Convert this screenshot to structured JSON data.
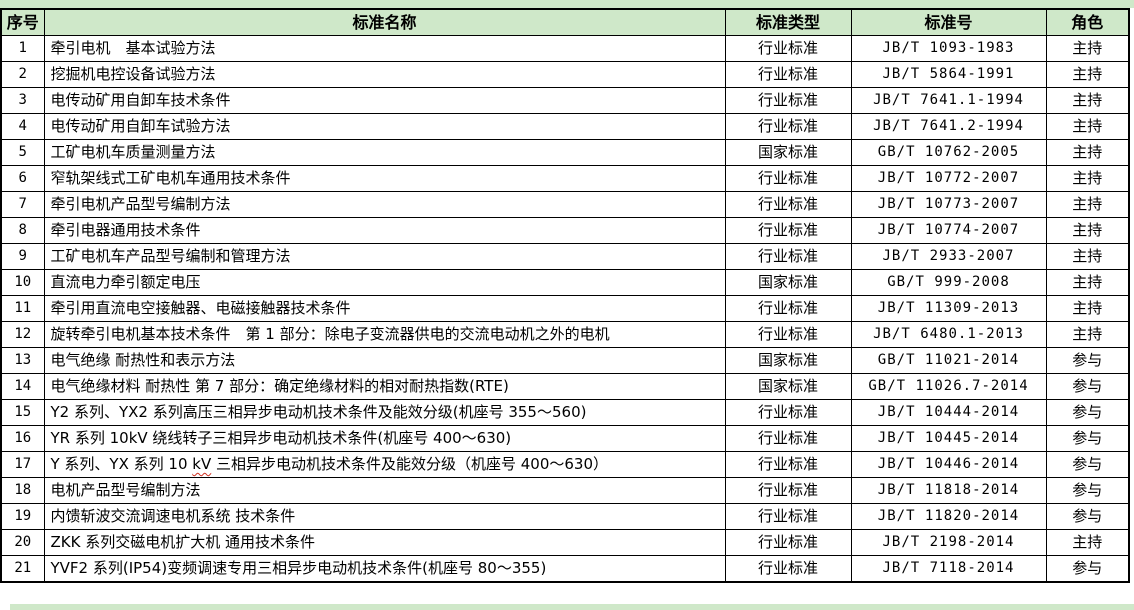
{
  "colors": {
    "band_green": "#cfe8c9",
    "border_black": "#000000",
    "spellcheck_red": "#d03020"
  },
  "table": {
    "headers": [
      "序号",
      "标准名称",
      "标准类型",
      "标准号",
      "角色"
    ],
    "rows": [
      {
        "no": "1",
        "name": "牵引电机　基本试验方法",
        "type": "行业标准",
        "code": "JB/T 1093-1983",
        "role": "主持"
      },
      {
        "no": "2",
        "name": "挖掘机电控设备试验方法",
        "type": "行业标准",
        "code": "JB/T 5864-1991",
        "role": "主持"
      },
      {
        "no": "3",
        "name": "电传动矿用自卸车技术条件",
        "type": "行业标准",
        "code": "JB/T 7641.1-1994",
        "role": "主持"
      },
      {
        "no": "4",
        "name": "电传动矿用自卸车试验方法",
        "type": "行业标准",
        "code": "JB/T 7641.2-1994",
        "role": "主持"
      },
      {
        "no": "5",
        "name": "工矿电机车质量测量方法",
        "type": "国家标准",
        "code": "GB/T 10762-2005",
        "role": "主持"
      },
      {
        "no": "6",
        "name": "窄轨架线式工矿电机车通用技术条件",
        "type": "行业标准",
        "code": "JB/T 10772-2007",
        "role": "主持"
      },
      {
        "no": "7",
        "name": "牵引电机产品型号编制方法",
        "type": "行业标准",
        "code": "JB/T 10773-2007",
        "role": "主持"
      },
      {
        "no": "8",
        "name": "牵引电器通用技术条件",
        "type": "行业标准",
        "code": "JB/T 10774-2007",
        "role": "主持"
      },
      {
        "no": "9",
        "name": "工矿电机车产品型号编制和管理方法",
        "type": "行业标准",
        "code": "JB/T 2933-2007",
        "role": "主持"
      },
      {
        "no": "10",
        "name": "直流电力牵引额定电压",
        "type": "国家标准",
        "code": "GB/T 999-2008",
        "role": "主持"
      },
      {
        "no": "11",
        "name": "牵引用直流电空接触器、电磁接触器技术条件",
        "type": "行业标准",
        "code": "JB/T 11309-2013",
        "role": "主持"
      },
      {
        "no": "12",
        "name": "旋转牵引电机基本技术条件　第 1 部分：除电子变流器供电的交流电动机之外的电机",
        "type": "行业标准",
        "code": "JB/T 6480.1-2013",
        "role": "主持"
      },
      {
        "no": "13",
        "name": "电气绝缘 耐热性和表示方法",
        "type": "国家标准",
        "code": "GB/T 11021-2014",
        "role": "参与"
      },
      {
        "no": "14",
        "name": "电气绝缘材料 耐热性 第 7 部分：确定绝缘材料的相对耐热指数(RTE)",
        "type": "国家标准",
        "code": "GB/T 11026.7-2014",
        "role": "参与"
      },
      {
        "no": "15",
        "name": "Y2 系列、YX2 系列高压三相异步电动机技术条件及能效分级(机座号 355～560)",
        "type": "行业标准",
        "code": "JB/T 10444-2014",
        "role": "参与"
      },
      {
        "no": "16",
        "name": "YR 系列 10kV 绕线转子三相异步电动机技术条件(机座号 400～630)",
        "type": "行业标准",
        "code": "JB/T 10445-2014",
        "role": "参与"
      },
      {
        "no": "17",
        "name": "Y 系列、YX 系列 10 kV 三相异步电动机技术条件及能效分级（机座号 400～630）",
        "misspell": "kV",
        "type": "行业标准",
        "code": "JB/T 10446-2014",
        "role": "参与"
      },
      {
        "no": "18",
        "name": "电机产品型号编制方法",
        "type": "行业标准",
        "code": "JB/T 11818-2014",
        "role": "参与"
      },
      {
        "no": "19",
        "name": "内馈斩波交流调速电机系统 技术条件",
        "type": "行业标准",
        "code": "JB/T 11820-2014",
        "role": "参与"
      },
      {
        "no": "20",
        "name": "ZKK 系列交磁电机扩大机  通用技术条件",
        "type": "行业标准",
        "code": "JB/T 2198-2014",
        "role": "主持"
      },
      {
        "no": "21",
        "name": "YVF2 系列(IP54)变频调速专用三相异步电动机技术条件(机座号 80～355)",
        "type": "行业标准",
        "code": "JB/T 7118-2014",
        "role": "参与"
      }
    ]
  }
}
